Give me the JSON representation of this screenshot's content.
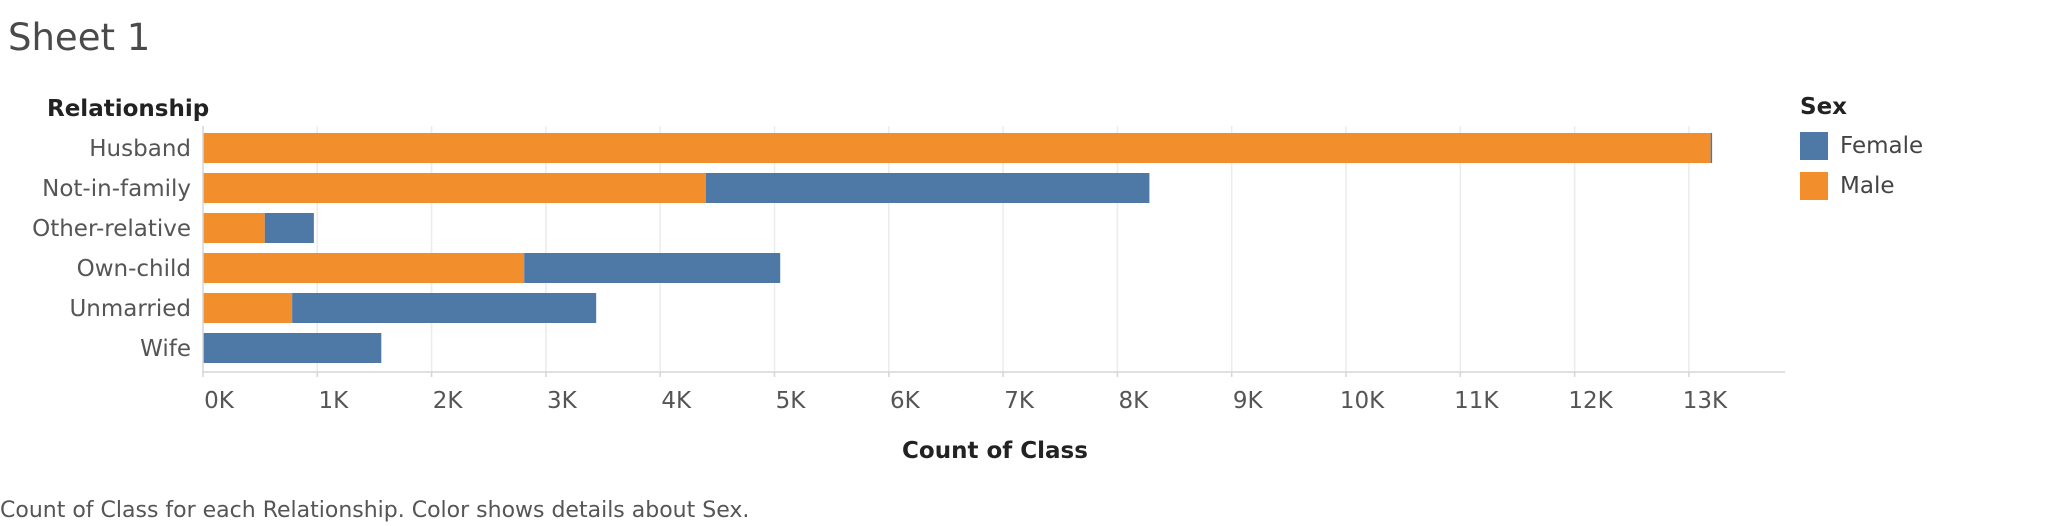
{
  "sheet": {
    "title": "Sheet 1",
    "caption": "Count of Class for each Relationship.  Color shows details about Sex."
  },
  "colors": {
    "Female": "#4e79a7",
    "Male": "#f28e2b",
    "grid": "#ececec",
    "axis": "#d6d6d6"
  },
  "chart_data": {
    "type": "bar",
    "orientation": "horizontal",
    "stacked": true,
    "row_header": "Relationship",
    "xlabel": "Count of Class",
    "legend_title": "Sex",
    "legend_position": "top-right",
    "grid": true,
    "xlim": [
      0,
      13800
    ],
    "xticks": [
      {
        "value": 0,
        "label": "0K"
      },
      {
        "value": 1000,
        "label": "1K"
      },
      {
        "value": 2000,
        "label": "2K"
      },
      {
        "value": 3000,
        "label": "3K"
      },
      {
        "value": 4000,
        "label": "4K"
      },
      {
        "value": 5000,
        "label": "5K"
      },
      {
        "value": 6000,
        "label": "6K"
      },
      {
        "value": 7000,
        "label": "7K"
      },
      {
        "value": 8000,
        "label": "8K"
      },
      {
        "value": 9000,
        "label": "9K"
      },
      {
        "value": 10000,
        "label": "10K"
      },
      {
        "value": 11000,
        "label": "11K"
      },
      {
        "value": 12000,
        "label": "12K"
      },
      {
        "value": 13000,
        "label": "13K"
      }
    ],
    "categories": [
      "Husband",
      "Not-in-family",
      "Other-relative",
      "Own-child",
      "Unmarried",
      "Wife"
    ],
    "series": [
      {
        "name": "Male",
        "values": [
          13190,
          4400,
          540,
          2810,
          780,
          0
        ]
      },
      {
        "name": "Female",
        "values": [
          1,
          3880,
          430,
          2240,
          2660,
          1560
        ]
      }
    ]
  }
}
